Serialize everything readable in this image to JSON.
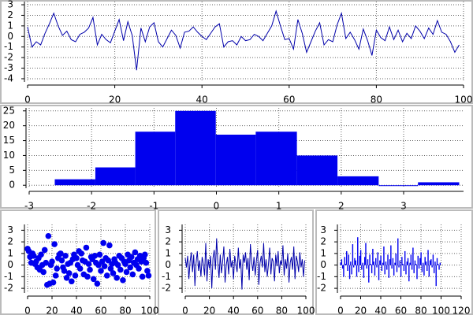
{
  "chart_data": [
    {
      "type": "line",
      "color": "#0000aa",
      "grid": true,
      "x": [
        0,
        1,
        2,
        3,
        4,
        5,
        6,
        7,
        8,
        9,
        10,
        11,
        12,
        13,
        14,
        15,
        16,
        17,
        18,
        19,
        20,
        21,
        22,
        23,
        24,
        25,
        26,
        27,
        28,
        29,
        30,
        31,
        32,
        33,
        34,
        35,
        36,
        37,
        38,
        39,
        40,
        41,
        42,
        43,
        44,
        45,
        46,
        47,
        48,
        49,
        50,
        51,
        52,
        53,
        54,
        55,
        56,
        57,
        58,
        59,
        60,
        61,
        62,
        63,
        64,
        65,
        66,
        67,
        68,
        69,
        70,
        71,
        72,
        73,
        74,
        75,
        76,
        77,
        78,
        79,
        80,
        81,
        82,
        83,
        84,
        85,
        86,
        87,
        88,
        89,
        90,
        91,
        92,
        93,
        94,
        95,
        96,
        97,
        98,
        99
      ],
      "values": [
        0.9,
        -1.0,
        -0.5,
        -0.8,
        0.3,
        1.2,
        2.2,
        1.0,
        0.1,
        0.5,
        -0.3,
        -0.5,
        0.2,
        0.4,
        0.8,
        1.8,
        -0.8,
        0.2,
        -0.3,
        -0.6,
        0.5,
        1.6,
        -0.4,
        1.4,
        0.1,
        -3.2,
        0.8,
        -0.5,
        0.9,
        1.3,
        -0.5,
        -1.0,
        -0.2,
        0.6,
        0.1,
        -1.1,
        0.4,
        0.5,
        0.9,
        0.4,
        0.0,
        -0.3,
        0.3,
        0.9,
        1.2,
        -1.0,
        -0.5,
        -0.4,
        -0.8,
        0.0,
        -0.4,
        -0.3,
        0.2,
        0.0,
        -0.4,
        0.3,
        1.0,
        2.4,
        1.0,
        -0.3,
        -0.2,
        -1.2,
        1.6,
        0.3,
        -1.5,
        -0.5,
        0.5,
        1.3,
        -0.8,
        -0.3,
        -0.5,
        1.1,
        2.2,
        -0.2,
        0.4,
        -0.3,
        -1.2,
        0.7,
        -0.4,
        -1.8,
        0.6,
        -0.1,
        -0.4,
        0.9,
        -0.3,
        0.6,
        -0.5,
        0.3,
        -0.2,
        1.0,
        0.5,
        -0.2,
        0.8,
        0.2,
        1.5,
        0.4,
        0.2,
        -0.5,
        -1.5,
        -0.8
      ],
      "xlim": [
        0,
        100
      ],
      "xticks": [
        0,
        20,
        40,
        60,
        80,
        100
      ],
      "ylim": [
        -4.3,
        3.3
      ],
      "yticks": [
        -4,
        -3,
        -2,
        -1,
        0,
        1,
        2,
        3
      ]
    },
    {
      "type": "histogram",
      "color": "#0000ee",
      "grid": true,
      "bins": [
        -2.59,
        -1.94,
        -1.3,
        -0.66,
        -0.01,
        0.63,
        1.29,
        1.94,
        2.6,
        3.23,
        3.89
      ],
      "values": [
        2,
        6,
        18,
        25,
        17,
        18,
        10,
        3,
        0,
        1
      ],
      "xlim": [
        -3,
        3.96
      ],
      "xticks": [
        -3,
        -2,
        -1,
        0,
        1,
        2,
        3
      ],
      "ylim": [
        -1,
        26
      ],
      "yticks": [
        0,
        5,
        10,
        15,
        20,
        25
      ]
    },
    {
      "type": "scatter",
      "color": "#0000ee",
      "grid": true,
      "x": [
        0,
        1,
        2,
        3,
        4,
        5,
        6,
        7,
        8,
        9,
        10,
        11,
        12,
        13,
        14,
        15,
        16,
        17,
        18,
        19,
        20,
        21,
        22,
        23,
        24,
        25,
        26,
        27,
        28,
        29,
        30,
        31,
        32,
        33,
        34,
        35,
        36,
        37,
        38,
        39,
        40,
        41,
        42,
        43,
        44,
        45,
        46,
        47,
        48,
        49,
        50,
        51,
        52,
        53,
        54,
        55,
        56,
        57,
        58,
        59,
        60,
        61,
        62,
        63,
        64,
        65,
        66,
        67,
        68,
        69,
        70,
        71,
        72,
        73,
        74,
        75,
        76,
        77,
        78,
        79,
        80,
        81,
        82,
        83,
        84,
        85,
        86,
        87,
        88,
        89,
        90,
        91,
        92,
        93,
        94,
        95,
        96,
        97,
        98,
        99
      ],
      "values": [
        1.4,
        1.2,
        0.7,
        0.2,
        1.0,
        0.8,
        0.1,
        0.3,
        -0.2,
        0.6,
        -0.4,
        0.9,
        0.0,
        -0.6,
        1.3,
        0.2,
        -1.7,
        2.5,
        -1.6,
        0.0,
        0.3,
        -1.5,
        1.8,
        -0.9,
        -0.3,
        0.6,
        0.9,
        1.0,
        0.4,
        -0.2,
        -0.5,
        0.8,
        -1.1,
        0.1,
        -0.7,
        0.2,
        -1.4,
        0.5,
        0.9,
        -0.9,
        0.6,
        0.0,
        1.2,
        -0.3,
        1.0,
        0.4,
        -0.8,
        0.3,
        1.5,
        -1.0,
        0.1,
        -0.4,
        0.7,
        0.5,
        -1.2,
        0.8,
        0.2,
        -1.6,
        0.0,
        0.9,
        -0.5,
        0.3,
        1.9,
        -0.1,
        0.6,
        -0.9,
        0.4,
        1.7,
        -0.3,
        0.1,
        -0.7,
        0.5,
        0.2,
        -1.1,
        0.0,
        0.8,
        -0.4,
        0.6,
        -1.3,
        0.3,
        0.1,
        -0.6,
        0.9,
        0.4,
        -0.2,
        0.7,
        -0.8,
        0.2,
        1.1,
        0.0,
        0.5,
        -0.3,
        0.8,
        0.3,
        -1.0,
        0.6,
        0.9,
        0.2,
        -0.5,
        -0.9
      ],
      "xlim": [
        0,
        100
      ],
      "xticks": [
        0,
        20,
        40,
        60,
        80,
        100
      ],
      "ylim": [
        -2.4,
        3.5
      ],
      "yticks": [
        -2,
        -1,
        0,
        1,
        2,
        3
      ]
    },
    {
      "type": "line",
      "color": "#0000aa",
      "grid": true,
      "x": [
        0,
        1,
        2,
        3,
        4,
        5,
        6,
        7,
        8,
        9,
        10,
        11,
        12,
        13,
        14,
        15,
        16,
        17,
        18,
        19,
        20,
        21,
        22,
        23,
        24,
        25,
        26,
        27,
        28,
        29,
        30,
        31,
        32,
        33,
        34,
        35,
        36,
        37,
        38,
        39,
        40,
        41,
        42,
        43,
        44,
        45,
        46,
        47,
        48,
        49,
        50,
        51,
        52,
        53,
        54,
        55,
        56,
        57,
        58,
        59,
        60,
        61,
        62,
        63,
        64,
        65,
        66,
        67,
        68,
        69,
        70,
        71,
        72,
        73,
        74,
        75,
        76,
        77,
        78,
        79,
        80,
        81,
        82,
        83,
        84,
        85,
        86,
        87,
        88,
        89,
        90,
        91,
        92,
        93,
        94,
        95,
        96,
        97,
        98,
        99
      ],
      "values": [
        0.6,
        -0.2,
        0.8,
        -1.2,
        0.3,
        1.1,
        -0.6,
        0.9,
        -1.8,
        0.2,
        1.2,
        -0.5,
        0.4,
        -1.0,
        0.7,
        0.1,
        -0.9,
        1.9,
        -1.4,
        0.5,
        -0.3,
        0.8,
        -2.0,
        0.6,
        1.3,
        -0.4,
        2.3,
        0.2,
        -1.1,
        0.9,
        -0.7,
        0.3,
        1.6,
        -1.5,
        0.0,
        0.7,
        -0.8,
        1.4,
        -0.2,
        0.4,
        -1.2,
        0.8,
        0.1,
        -0.6,
        1.5,
        -0.3,
        0.5,
        -2.1,
        0.9,
        0.2,
        1.1,
        -0.4,
        0.6,
        -1.3,
        1.8,
        0.3,
        -0.5,
        0.7,
        -0.9,
        0.4,
        1.3,
        -1.7,
        0.2,
        0.8,
        -0.2,
        1.9,
        -0.6,
        0.5,
        -1.0,
        0.1,
        1.5,
        -0.8,
        0.6,
        0.3,
        -1.4,
        0.9,
        -0.1,
        1.2,
        -0.7,
        0.4,
        0.0,
        1.7,
        -0.9,
        0.5,
        -0.3,
        1.0,
        -1.5,
        0.2,
        0.7,
        -0.4,
        1.6,
        -1.2,
        0.8,
        0.3,
        -0.6,
        1.1,
        -0.2,
        0.5,
        -1.0,
        0.4
      ],
      "xlim": [
        0,
        100
      ],
      "xticks": [
        0,
        20,
        40,
        60,
        80,
        100
      ],
      "ylim": [
        -2.4,
        3.5
      ],
      "yticks": [
        -2,
        -1,
        0,
        1,
        2,
        3
      ]
    },
    {
      "type": "bar",
      "color": "#0000ee",
      "grid": true,
      "x": [
        0,
        1,
        2,
        3,
        4,
        5,
        6,
        7,
        8,
        9,
        10,
        11,
        12,
        13,
        14,
        15,
        16,
        17,
        18,
        19,
        20,
        21,
        22,
        23,
        24,
        25,
        26,
        27,
        28,
        29,
        30,
        31,
        32,
        33,
        34,
        35,
        36,
        37,
        38,
        39,
        40,
        41,
        42,
        43,
        44,
        45,
        46,
        47,
        48,
        49,
        50,
        51,
        52,
        53,
        54,
        55,
        56,
        57,
        58,
        59,
        60,
        61,
        62,
        63,
        64,
        65,
        66,
        67,
        68,
        69,
        70,
        71,
        72,
        73,
        74,
        75,
        76,
        77,
        78,
        79,
        80,
        81,
        82,
        83,
        84,
        85,
        86,
        87,
        88,
        89,
        90,
        91,
        92,
        93,
        94,
        95,
        96,
        97,
        98,
        99
      ],
      "values": [
        0.2,
        0.5,
        -0.3,
        -1.0,
        0.7,
        0.1,
        1.2,
        -0.5,
        0.9,
        -1.2,
        0.3,
        -0.8,
        1.8,
        -0.2,
        0.6,
        0.4,
        -1.0,
        2.4,
        -0.6,
        0.8,
        1.3,
        -0.4,
        0.2,
        -1.1,
        0.7,
        1.9,
        -0.3,
        0.5,
        -1.5,
        0.9,
        0.1,
        -0.7,
        1.4,
        0.3,
        -0.9,
        0.6,
        -0.2,
        1.1,
        -1.3,
        0.4,
        0.8,
        -0.5,
        0.2,
        1.6,
        -0.8,
        0.3,
        -0.4,
        0.9,
        -1.1,
        0.5,
        1.7,
        -0.3,
        0.6,
        -0.9,
        0.2,
        1.0,
        -0.6,
        2.3,
        -0.2,
        0.4,
        -1.0,
        0.7,
        0.1,
        -0.5,
        1.2,
        -0.8,
        0.3,
        0.6,
        -1.4,
        0.2,
        0.9,
        -0.4,
        1.5,
        -0.7,
        0.4,
        0.1,
        -1.2,
        0.8,
        -0.3,
        0.6,
        1.1,
        -0.6,
        0.2,
        -0.9,
        0.7,
        0.3,
        -0.5,
        1.3,
        -1.0,
        0.4,
        0.5,
        -0.2,
        0.9,
        -0.7,
        0.3,
        -1.8,
        0.6,
        0.1,
        -0.4,
        0.2
      ],
      "xlim": [
        0,
        120
      ],
      "xticks": [
        0,
        20,
        40,
        60,
        80,
        100,
        120
      ],
      "ylim": [
        -2.4,
        3.5
      ],
      "yticks": [
        -2,
        -1,
        0,
        1,
        2,
        3
      ]
    }
  ]
}
